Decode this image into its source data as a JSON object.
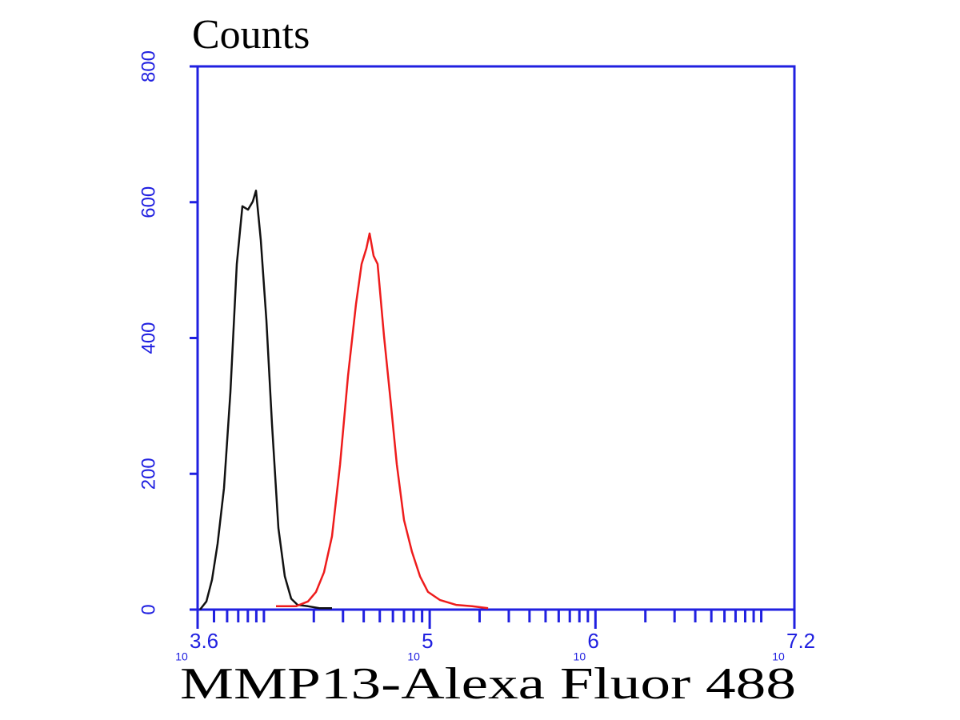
{
  "chart_data": {
    "type": "line",
    "y_title": "Counts",
    "x_title": "MMP13-Alexa Fluor 488",
    "xscale": "log",
    "axis_color": "#2020e0",
    "xlim": [
      3981,
      15848932
    ],
    "ylim": [
      0,
      800
    ],
    "xticks": [
      {
        "value": 3981,
        "label": {
          "base": "10",
          "power": "3.6"
        }
      },
      {
        "value": 100000,
        "label": {
          "base": "10",
          "power": "5"
        }
      },
      {
        "value": 1000000,
        "label": {
          "base": "10",
          "power": "6"
        }
      },
      {
        "value": 15848932,
        "label": {
          "base": "10",
          "power": "7.2"
        }
      }
    ],
    "xminorticks": [
      5000,
      6000,
      7000,
      8000,
      9000,
      10000,
      20000,
      30000,
      40000,
      50000,
      60000,
      70000,
      80000,
      90000,
      200000,
      300000,
      400000,
      500000,
      600000,
      700000,
      800000,
      900000,
      2000000,
      3000000,
      4000000,
      5000000,
      6000000,
      7000000,
      8000000,
      9000000,
      10000000
    ],
    "yticks": [
      0,
      200,
      400,
      600,
      800
    ],
    "series": [
      {
        "color": "#111111",
        "x": [
          4116,
          4499,
          4863,
          5257,
          5745,
          6280,
          6863,
          7420,
          8020,
          8570,
          8960,
          9580,
          10350,
          11190,
          12230,
          13370,
          14610,
          15970,
          18450,
          21800,
          25760
        ],
        "values": [
          0,
          12,
          44,
          97,
          179,
          320,
          509,
          594,
          589,
          601,
          617,
          544,
          426,
          273,
          120,
          49,
          16,
          7,
          5,
          2,
          2
        ]
      },
      {
        "color": "#ee1c1c",
        "x": [
          11830,
          15620,
          18450,
          20620,
          23040,
          25760,
          28790,
          32170,
          35950,
          38860,
          41530,
          43410,
          45890,
          48520,
          53040,
          57980,
          63350,
          70010,
          78240,
          87450,
          97730,
          115500,
          144200,
          180100,
          224900
        ],
        "values": [
          5,
          5,
          12,
          26,
          55,
          108,
          214,
          344,
          450,
          509,
          532,
          554,
          521,
          509,
          403,
          309,
          214,
          132,
          85,
          49,
          26,
          14,
          7,
          5,
          2
        ]
      }
    ]
  }
}
